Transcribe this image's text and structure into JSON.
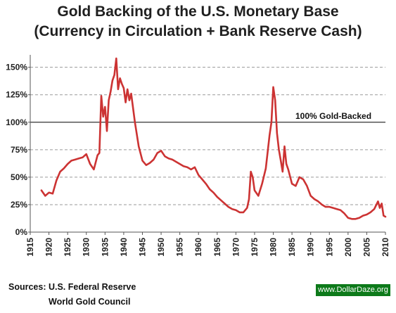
{
  "title_line1": "Gold Backing of the U.S. Monetary Base",
  "title_line2": "(Currency in Circulation + Bank Reserve Cash)",
  "sources_line1": "Sources: U.S. Federal Reserve",
  "sources_line2": "World Gold Council",
  "credit": "www.DollarDaze.org",
  "colors": {
    "series": "#cc3333",
    "credit_bg": "#0d7a1a",
    "grid": "#9a9a9a",
    "reference": "#333333"
  },
  "chart_data": {
    "type": "line",
    "title": "Gold Backing of the U.S. Monetary Base",
    "subtitle": "(Currency in Circulation + Bank Reserve Cash)",
    "xlabel": "",
    "ylabel": "",
    "xlim": [
      1915,
      2010
    ],
    "ylim": [
      0,
      160
    ],
    "grid": "horizontal dashed",
    "x_ticks": [
      "1915",
      "1920",
      "1925",
      "1930",
      "1935",
      "1940",
      "1945",
      "1950",
      "1955",
      "1960",
      "1965",
      "1970",
      "1975",
      "1980",
      "1985",
      "1990",
      "1995",
      "2000",
      "2005",
      "2010"
    ],
    "y_ticks": [
      {
        "value": 0,
        "label": "0%"
      },
      {
        "value": 25,
        "label": "25%"
      },
      {
        "value": 50,
        "label": "50%"
      },
      {
        "value": 75,
        "label": "75%"
      },
      {
        "value": 100,
        "label": "100%"
      },
      {
        "value": 125,
        "label": "125%"
      },
      {
        "value": 150,
        "label": "150%"
      }
    ],
    "reference_line": {
      "value": 100,
      "label": "100% Gold-Backed"
    },
    "series": [
      {
        "x": [
          1918,
          1919,
          1920,
          1921,
          1922,
          1923,
          1924,
          1925,
          1926,
          1927,
          1928,
          1929,
          1930,
          1931,
          1932,
          1933,
          1933.5,
          1934,
          1934.5,
          1935,
          1935.5,
          1936,
          1936.5,
          1937,
          1937.5,
          1938,
          1938.5,
          1939,
          1939.5,
          1940,
          1940.5,
          1941,
          1941.5,
          1942,
          1943,
          1944,
          1945,
          1946,
          1947,
          1948,
          1949,
          1950,
          1951,
          1952,
          1953,
          1954,
          1955,
          1956,
          1957,
          1958,
          1959,
          1960,
          1961,
          1962,
          1963,
          1964,
          1965,
          1966,
          1967,
          1968,
          1969,
          1970,
          1971,
          1972,
          1973,
          1973.5,
          1974,
          1974.5,
          1975,
          1976,
          1977,
          1978,
          1979,
          1979.5,
          1980,
          1980.5,
          1981,
          1981.5,
          1982,
          1982.5,
          1983,
          1983.5,
          1984,
          1985,
          1986,
          1987,
          1988,
          1989,
          1990,
          1991,
          1992,
          1993,
          1994,
          1995,
          1996,
          1997,
          1998,
          1999,
          2000,
          2001,
          2002,
          2003,
          2004,
          2005,
          2006,
          2007,
          2008,
          2008.5,
          2009,
          2009.5,
          2010
        ],
        "y": [
          38,
          33,
          36,
          35,
          47,
          55,
          58,
          62,
          65,
          66,
          67,
          68,
          71,
          62,
          57,
          70,
          72,
          124,
          105,
          114,
          92,
          120,
          128,
          138,
          143,
          158,
          130,
          140,
          135,
          131,
          118,
          130,
          120,
          126,
          100,
          78,
          65,
          61,
          63,
          66,
          72,
          74,
          69,
          67,
          66,
          64,
          62,
          60,
          59,
          57,
          59,
          52,
          48,
          44,
          39,
          36,
          32,
          29,
          26,
          23,
          21,
          20,
          18,
          18,
          22,
          30,
          55,
          50,
          38,
          33,
          44,
          58,
          88,
          100,
          132,
          120,
          90,
          75,
          65,
          55,
          78,
          62,
          57,
          44,
          42,
          50,
          48,
          42,
          33,
          30,
          28,
          25,
          23,
          23,
          22,
          21,
          20,
          17,
          13,
          12,
          12,
          13,
          15,
          16,
          18,
          21,
          28,
          22,
          26,
          15,
          14
        ]
      }
    ]
  }
}
